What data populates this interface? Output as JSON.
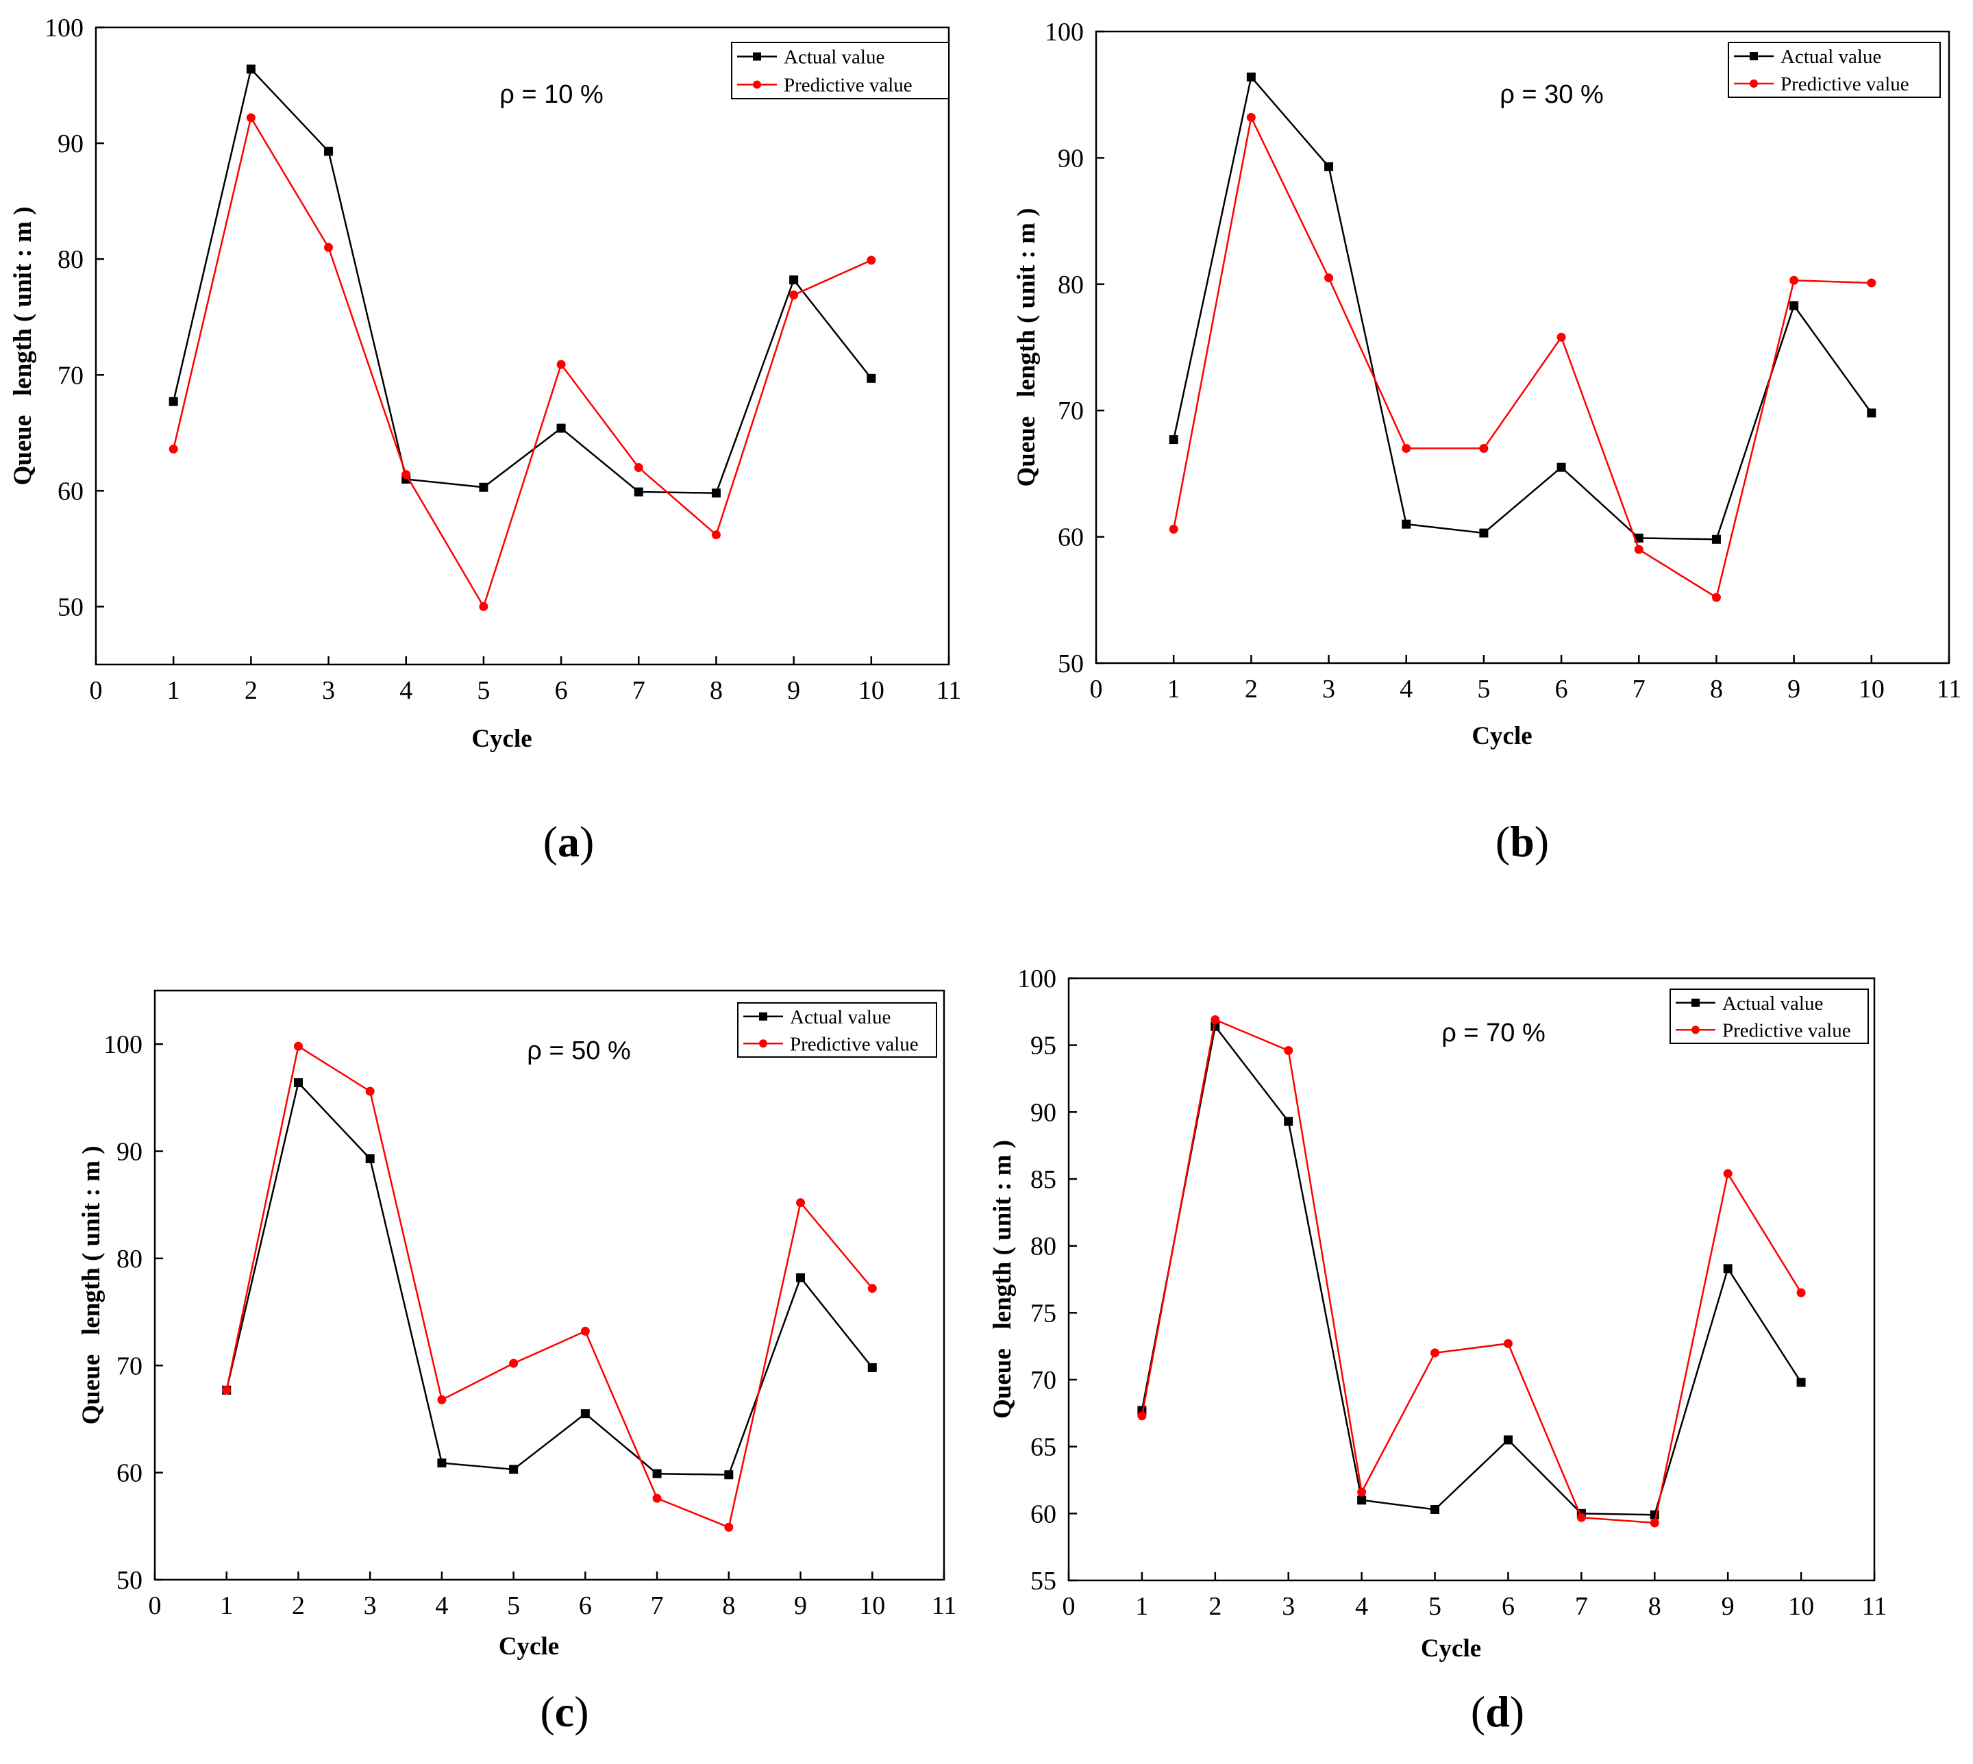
{
  "panels": [
    {
      "caption_open": "(",
      "caption_letter": "a",
      "caption_close": ")",
      "chart_data": {
        "type": "line",
        "title": "",
        "annotation": "ρ = 10 %",
        "xlabel": "Cycle",
        "ylabel": "Queue   length ( unit : m )",
        "xlim": [
          0,
          11
        ],
        "ylim": [
          45,
          100
        ],
        "xticks": [
          0,
          1,
          2,
          3,
          4,
          5,
          6,
          7,
          8,
          9,
          10,
          11
        ],
        "yticks": [
          50,
          60,
          70,
          80,
          90,
          100
        ],
        "x": [
          1,
          2,
          3,
          4,
          5,
          6,
          7,
          8,
          9,
          10
        ],
        "legend_position": "top-right",
        "series": [
          {
            "name": "Actual value",
            "color": "#000000",
            "marker": "square",
            "values": [
              67.7,
              96.4,
              89.3,
              61.0,
              60.3,
              65.4,
              59.9,
              59.8,
              78.2,
              69.7
            ]
          },
          {
            "name": "Predictive value",
            "color": "#ff0000",
            "marker": "circle",
            "values": [
              63.6,
              92.2,
              81.0,
              61.4,
              50.0,
              70.9,
              62.0,
              56.2,
              76.9,
              79.9
            ]
          }
        ]
      }
    },
    {
      "caption_open": "(",
      "caption_letter": "b",
      "caption_close": ")",
      "chart_data": {
        "type": "line",
        "title": "",
        "annotation": "ρ = 30 %",
        "xlabel": "Cycle",
        "ylabel": "Queue   length ( unit : m )",
        "xlim": [
          0,
          11
        ],
        "ylim": [
          50,
          100
        ],
        "xticks": [
          0,
          1,
          2,
          3,
          4,
          5,
          6,
          7,
          8,
          9,
          10,
          11
        ],
        "yticks": [
          50,
          60,
          70,
          80,
          90,
          100
        ],
        "x": [
          1,
          2,
          3,
          4,
          5,
          6,
          7,
          8,
          9,
          10
        ],
        "legend_position": "top-right",
        "series": [
          {
            "name": "Actual value",
            "color": "#000000",
            "marker": "square",
            "values": [
              67.7,
              96.4,
              89.3,
              61.0,
              60.3,
              65.5,
              59.9,
              59.8,
              78.3,
              69.8
            ]
          },
          {
            "name": "Predictive value",
            "color": "#ff0000",
            "marker": "circle",
            "values": [
              60.6,
              93.2,
              80.5,
              67.0,
              67.0,
              75.8,
              59.0,
              55.2,
              80.3,
              80.1
            ]
          }
        ]
      }
    },
    {
      "caption_open": "(",
      "caption_letter": "c",
      "caption_close": ")",
      "chart_data": {
        "type": "line",
        "title": "",
        "annotation": "ρ = 50 %",
        "xlabel": "Cycle",
        "ylabel": "Queue   length ( unit : m )",
        "xlim": [
          0,
          11
        ],
        "ylim": [
          50,
          105
        ],
        "xticks": [
          0,
          1,
          2,
          3,
          4,
          5,
          6,
          7,
          8,
          9,
          10,
          11
        ],
        "yticks": [
          50,
          60,
          70,
          80,
          90,
          100
        ],
        "x": [
          1,
          2,
          3,
          4,
          5,
          6,
          7,
          8,
          9,
          10
        ],
        "legend_position": "top-right",
        "series": [
          {
            "name": "Actual value",
            "color": "#000000",
            "marker": "square",
            "values": [
              67.7,
              96.4,
              89.3,
              60.9,
              60.3,
              65.5,
              59.9,
              59.8,
              78.2,
              69.8
            ]
          },
          {
            "name": "Predictive value",
            "color": "#ff0000",
            "marker": "circle",
            "values": [
              67.7,
              99.8,
              95.6,
              66.8,
              70.2,
              73.2,
              57.6,
              54.9,
              85.2,
              77.2
            ]
          }
        ]
      }
    },
    {
      "caption_open": "(",
      "caption_letter": "d",
      "caption_close": ")",
      "chart_data": {
        "type": "line",
        "title": "",
        "annotation": "ρ = 70 %",
        "xlabel": "Cycle",
        "ylabel": "Queue   length ( unit : m )",
        "xlim": [
          0,
          11
        ],
        "ylim": [
          55,
          100
        ],
        "xticks": [
          0,
          1,
          2,
          3,
          4,
          5,
          6,
          7,
          8,
          9,
          10,
          11
        ],
        "yticks": [
          55,
          60,
          65,
          70,
          75,
          80,
          85,
          90,
          95,
          100
        ],
        "x": [
          1,
          2,
          3,
          4,
          5,
          6,
          7,
          8,
          9,
          10
        ],
        "legend_position": "top-right",
        "series": [
          {
            "name": "Actual value",
            "color": "#000000",
            "marker": "square",
            "values": [
              67.7,
              96.4,
              89.3,
              61.0,
              60.3,
              65.5,
              60.0,
              59.9,
              78.3,
              69.8
            ]
          },
          {
            "name": "Predictive value",
            "color": "#ff0000",
            "marker": "circle",
            "values": [
              67.3,
              96.9,
              94.6,
              61.6,
              72.0,
              72.7,
              59.7,
              59.3,
              85.4,
              76.5
            ]
          }
        ]
      }
    }
  ]
}
